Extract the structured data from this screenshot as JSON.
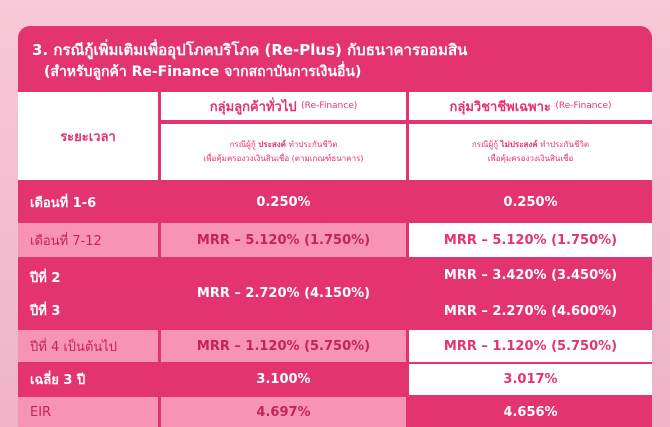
{
  "title": {
    "line1": "3. กรณีกู้เพิ่มเติมเพื่ออุปโภคบริโภค (Re-Plus) กับธนาคารออมสิน",
    "line2": "(สำหรับลูกค้า Re-Finance จากสถาบันการเงินอื่น)"
  },
  "header": {
    "period": "ระยะเวลา",
    "group1": {
      "title": "กลุ่มลูกค้าทั่วไป",
      "title_tag": "(Re-Finance)",
      "note_pre": "กรณีผู้กู้",
      "note_key": "ประสงค์",
      "note_post": "ทำประกันชีวิต",
      "note_line2": "เพื่อคุ้มครองวงเงินสินเชื่อ",
      "note_line2_tag": "(ตามเกณฑ์ธนาคาร)"
    },
    "group2": {
      "title": "กลุ่มวิชาชีพเฉพาะ",
      "title_tag": "(Re-Finance)",
      "note_pre": "กรณีผู้กู้",
      "note_key": "ไม่ประสงค์",
      "note_post": "ทำประกันชีวิต",
      "note_line2": "เพื่อคุ้มครองวงเงินสินเชื่อ"
    }
  },
  "rows": {
    "r1": {
      "label": "เดือนที่ 1-6",
      "g1": "0.250%",
      "g2": "0.250%"
    },
    "r2": {
      "label": "เดือนที่ 7-12",
      "g1": "MRR – 5.120% (1.750%)",
      "g2": "MRR – 5.120% (1.750%)"
    },
    "r3": {
      "label_a": "ปีที่ 2",
      "label_b": "ปีที่ 3",
      "g1": "MRR – 2.720% (4.150%)",
      "g2_a": "MRR – 3.420% (3.450%)",
      "g2_b": "MRR – 2.270% (4.600%)"
    },
    "r4": {
      "label": "ปีที่ 4 เป็นต้นไป",
      "g1": "MRR – 1.120% (5.750%)",
      "g2": "MRR – 1.120% (5.750%)"
    },
    "r5": {
      "label": "เฉลี่ย 3 ปี",
      "g1": "3.100%",
      "g2": "3.017%"
    },
    "r6": {
      "label": "EIR",
      "g1": "4.697%",
      "g2": "4.656%"
    }
  },
  "colors": {
    "primary": "#e4346f",
    "light": "#f794b5",
    "background": "#f8c9d8"
  }
}
